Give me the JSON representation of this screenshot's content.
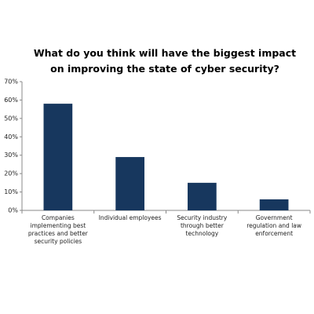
{
  "chart_data": {
    "type": "bar",
    "title": "What do you think will have the biggest impact on improving the state of cyber security?",
    "categories": [
      "Companies implementing best practices and better security policies",
      "Individual employees",
      "Security industry through better technology",
      "Government regulation and law enforcement"
    ],
    "values": [
      58,
      29,
      15,
      6
    ],
    "color": "#17375e",
    "ylim": [
      0,
      70
    ],
    "yticks": [
      {
        "value": 0,
        "label": "0%"
      },
      {
        "value": 10,
        "label": "10%"
      },
      {
        "value": 20,
        "label": "20%"
      },
      {
        "value": 30,
        "label": "30%"
      },
      {
        "value": 40,
        "label": "40%"
      },
      {
        "value": 50,
        "label": "50%"
      },
      {
        "value": 60,
        "label": "60%"
      },
      {
        "value": 70,
        "label": "70%"
      }
    ],
    "grid": false
  }
}
